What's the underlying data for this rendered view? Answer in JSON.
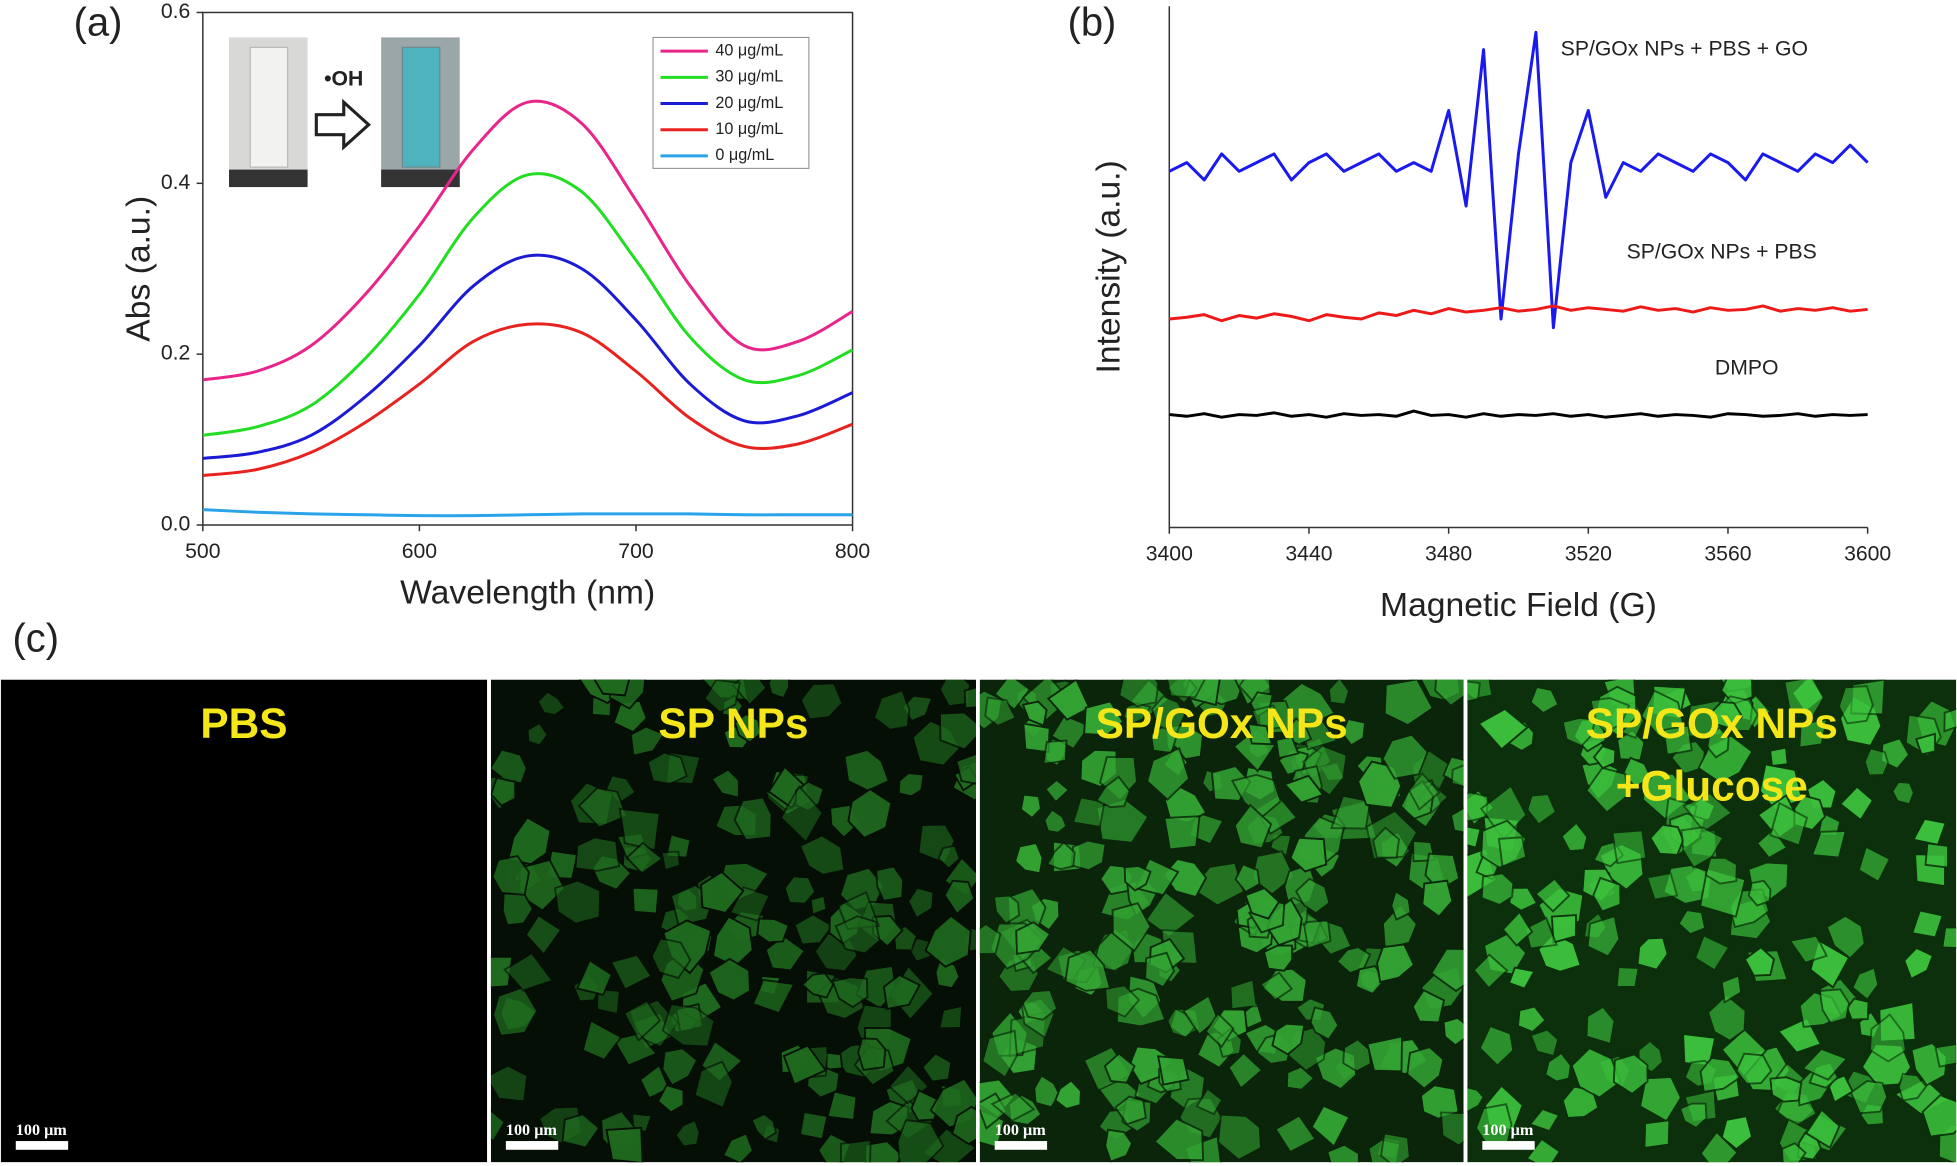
{
  "chart_data": [
    {
      "type": "line",
      "panel_label": "(a)",
      "x_label": "Wavelength (nm)",
      "y_label": "Abs (a.u.)",
      "annotation": "•OH",
      "x": [
        500,
        525,
        550,
        575,
        600,
        625,
        650,
        675,
        700,
        725,
        750,
        775,
        800
      ],
      "xlim": [
        500,
        800
      ],
      "xticks": [
        500,
        600,
        700,
        800
      ],
      "ylim": [
        0,
        0.6
      ],
      "yticks": [
        {
          "value": 0,
          "label": "0.0"
        },
        0.2,
        0.4,
        0.6
      ],
      "legend": "upper right",
      "series": [
        {
          "name": "40 μg/mL",
          "color": "#e8258a",
          "values": [
            0.17,
            0.18,
            0.21,
            0.27,
            0.35,
            0.44,
            0.495,
            0.47,
            0.38,
            0.28,
            0.21,
            0.215,
            0.25
          ]
        },
        {
          "name": "30 μg/mL",
          "color": "#22dd22",
          "values": [
            0.105,
            0.115,
            0.14,
            0.195,
            0.27,
            0.36,
            0.41,
            0.39,
            0.31,
            0.22,
            0.17,
            0.175,
            0.205
          ]
        },
        {
          "name": "20 μg/mL",
          "color": "#1b1bd6",
          "values": [
            0.078,
            0.085,
            0.105,
            0.15,
            0.21,
            0.28,
            0.315,
            0.3,
            0.24,
            0.165,
            0.122,
            0.128,
            0.155
          ]
        },
        {
          "name": "10 μg/mL",
          "color": "#e8221f",
          "values": [
            0.058,
            0.065,
            0.085,
            0.12,
            0.165,
            0.215,
            0.235,
            0.225,
            0.18,
            0.125,
            0.092,
            0.095,
            0.118
          ]
        },
        {
          "name": "0 μg/mL",
          "color": "#2aa3e8",
          "values": [
            0.018,
            0.015,
            0.013,
            0.012,
            0.011,
            0.011,
            0.012,
            0.013,
            0.013,
            0.013,
            0.012,
            0.012,
            0.012
          ]
        }
      ]
    },
    {
      "type": "line",
      "panel_label": "(b)",
      "x_label": "Magnetic Field (G)",
      "y_label": "Intensity (a.u.)",
      "x": [
        3400,
        3405,
        3410,
        3415,
        3420,
        3425,
        3430,
        3435,
        3440,
        3445,
        3450,
        3455,
        3460,
        3465,
        3470,
        3475,
        3480,
        3485,
        3490,
        3495,
        3500,
        3505,
        3510,
        3515,
        3520,
        3525,
        3530,
        3535,
        3540,
        3545,
        3550,
        3555,
        3560,
        3565,
        3570,
        3575,
        3580,
        3585,
        3590,
        3595,
        3600
      ],
      "xlim": [
        3400,
        3600
      ],
      "xticks": [
        3400,
        3440,
        3480,
        3520,
        3560,
        3600
      ],
      "ylim": [
        0,
        6
      ],
      "series": [
        {
          "name": "SP/GOx NPs + PBS + GO",
          "color": "#1a1aee",
          "values": [
            4.1,
            4.2,
            4.0,
            4.3,
            4.1,
            4.2,
            4.3,
            4.0,
            4.2,
            4.3,
            4.1,
            4.2,
            4.3,
            4.1,
            4.2,
            4.1,
            4.8,
            3.7,
            5.5,
            2.4,
            4.3,
            5.7,
            2.3,
            4.2,
            4.8,
            3.8,
            4.2,
            4.1,
            4.3,
            4.2,
            4.1,
            4.3,
            4.2,
            4.0,
            4.3,
            4.2,
            4.1,
            4.3,
            4.2,
            4.4,
            4.2
          ]
        },
        {
          "name": "SP/GOx NPs + PBS",
          "color": "#ee1a1a",
          "values": [
            2.4,
            2.42,
            2.45,
            2.38,
            2.44,
            2.41,
            2.46,
            2.43,
            2.38,
            2.45,
            2.42,
            2.4,
            2.47,
            2.44,
            2.5,
            2.46,
            2.52,
            2.48,
            2.5,
            2.53,
            2.49,
            2.51,
            2.55,
            2.5,
            2.53,
            2.51,
            2.49,
            2.54,
            2.5,
            2.52,
            2.48,
            2.53,
            2.5,
            2.51,
            2.55,
            2.49,
            2.52,
            2.5,
            2.53,
            2.49,
            2.51
          ]
        },
        {
          "name": "DMPO",
          "color": "#000000",
          "values": [
            1.3,
            1.28,
            1.31,
            1.27,
            1.3,
            1.29,
            1.32,
            1.28,
            1.3,
            1.27,
            1.31,
            1.29,
            1.3,
            1.28,
            1.34,
            1.29,
            1.3,
            1.27,
            1.31,
            1.28,
            1.3,
            1.29,
            1.31,
            1.28,
            1.3,
            1.27,
            1.29,
            1.31,
            1.28,
            1.3,
            1.29,
            1.27,
            1.31,
            1.3,
            1.28,
            1.29,
            1.31,
            1.28,
            1.3,
            1.29,
            1.3
          ]
        }
      ]
    }
  ],
  "images": {
    "panel_label": "(c)",
    "scale_bar": "100 μm",
    "panels": [
      {
        "title": [
          "PBS"
        ]
      },
      {
        "title": [
          "SP NPs"
        ]
      },
      {
        "title": [
          "SP/GOx NPs"
        ]
      },
      {
        "title": [
          "SP/GOx NPs",
          "+Glucose"
        ]
      }
    ]
  }
}
